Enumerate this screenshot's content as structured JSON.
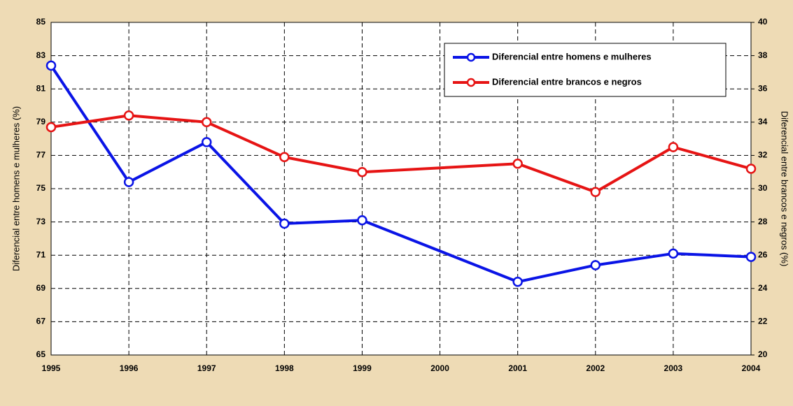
{
  "chart_data": {
    "type": "line",
    "y_label": "Diferencial entre homens e mulheres (%)",
    "y2_label": "Diferencial entre brancos e negros (%)",
    "xlim": [
      1995,
      2004
    ],
    "xticks": [
      1995,
      1996,
      1997,
      1998,
      1999,
      2000,
      2001,
      2002,
      2003,
      2004
    ],
    "ylim": [
      65,
      85
    ],
    "yticks": [
      65,
      67,
      69,
      71,
      73,
      75,
      77,
      79,
      81,
      83,
      85
    ],
    "y2lim": [
      20,
      40
    ],
    "y2ticks": [
      20,
      22,
      24,
      26,
      28,
      30,
      32,
      34,
      36,
      38,
      40
    ],
    "grid": true,
    "legend": "upper right",
    "series": [
      {
        "name": "Diferencial entre homens e mulheres",
        "color": "#0a14e6",
        "x": [
          1995,
          1996,
          1997,
          1998,
          1999,
          2001,
          2002,
          2003,
          2004
        ],
        "values": [
          82.4,
          75.4,
          77.8,
          72.9,
          73.1,
          69.4,
          70.4,
          71.1,
          70.9
        ]
      },
      {
        "name": "Diferencial entre brancos e negros",
        "color": "#e61414",
        "axis": "y2",
        "x": [
          1995,
          1996,
          1997,
          1998,
          1999,
          2001,
          2002,
          2003,
          2004
        ],
        "values": [
          33.7,
          34.4,
          34.0,
          31.9,
          31.0,
          31.5,
          29.8,
          32.5,
          31.2
        ]
      }
    ]
  }
}
